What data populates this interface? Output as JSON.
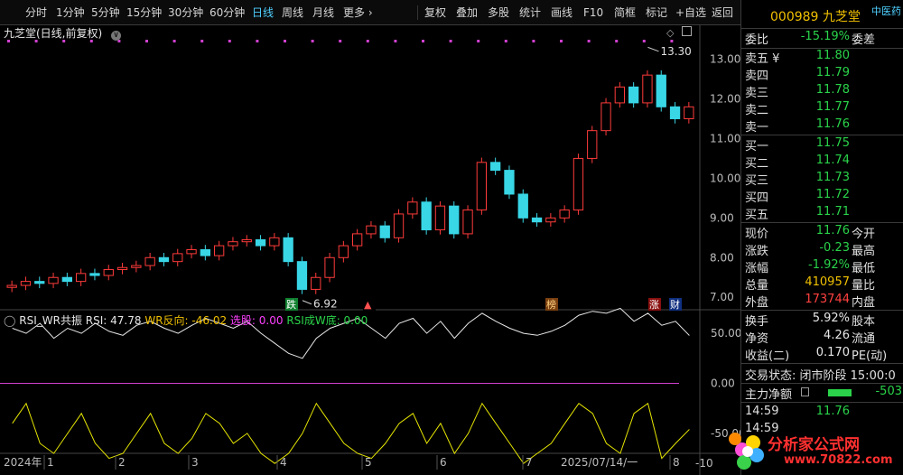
{
  "toolbar": {
    "items": [
      "分时",
      "1分钟",
      "5分钟",
      "15分钟",
      "30分钟",
      "60分钟",
      "日线",
      "周线",
      "月线",
      "更多 ›",
      "复权",
      "叠加",
      "多股",
      "统计",
      "画线",
      "F10",
      "简框",
      "标记",
      "+自选",
      "返回"
    ]
  },
  "chart": {
    "title": "九芝堂(日线,前复权)",
    "high_label": "13.30",
    "low_label": "6.92",
    "y_axis_price": [
      "13.00",
      "12.00",
      "11.00",
      "10.00",
      "9.00",
      "8.00",
      "7.00"
    ],
    "y_axis_ind": [
      "50.00",
      "0.00",
      "-50.00",
      "-10"
    ],
    "indicator": {
      "name": "RSI_WR共振",
      "rsi_label": "RSI: 47.78",
      "wr_label": "WR反向: -46.02",
      "pick_label": "选股: 0.00",
      "cross_label": "RSI成W底: 0.00"
    },
    "badges": {
      "fall": "跌",
      "rank": "榜",
      "rise": "涨",
      "fin": "财"
    },
    "x_axis": [
      "2024年",
      "1",
      "2",
      "3",
      "4",
      "5",
      "6",
      "7",
      "2025/07/14/一",
      "8"
    ]
  },
  "chart_data": {
    "type": "candlestick",
    "ylim": [
      6.8,
      13.4
    ],
    "x": [
      1,
      2,
      3,
      4,
      5,
      6,
      7,
      8,
      9,
      10,
      11,
      12,
      13,
      14,
      15,
      16,
      17,
      18,
      19,
      20,
      21,
      22,
      23,
      24,
      25,
      26,
      27,
      28,
      29,
      30,
      31,
      32,
      33,
      34,
      35,
      36,
      37,
      38,
      39,
      40,
      41,
      42,
      43,
      44,
      45,
      46,
      47,
      48,
      49,
      50
    ],
    "close": [
      7.3,
      7.4,
      7.35,
      7.5,
      7.4,
      7.6,
      7.55,
      7.7,
      7.75,
      7.8,
      8.0,
      7.9,
      8.1,
      8.2,
      8.05,
      8.3,
      8.4,
      8.45,
      8.3,
      8.5,
      7.9,
      7.2,
      7.5,
      8.0,
      8.3,
      8.6,
      8.8,
      8.5,
      9.1,
      9.4,
      8.7,
      9.3,
      8.6,
      9.2,
      10.4,
      10.2,
      9.6,
      9.0,
      8.9,
      9.0,
      9.2,
      10.5,
      11.2,
      11.9,
      12.3,
      11.9,
      12.6,
      11.8,
      11.5,
      11.8
    ],
    "series": [
      {
        "name": "RSI",
        "values": [
          55,
          50,
          60,
          45,
          55,
          50,
          60,
          52,
          48,
          58,
          62,
          55,
          50,
          58,
          65,
          60,
          55,
          62,
          50,
          40,
          30,
          25,
          45,
          55,
          60,
          65,
          55,
          45,
          60,
          65,
          50,
          62,
          45,
          60,
          70,
          62,
          55,
          50,
          48,
          52,
          58,
          68,
          72,
          70,
          75,
          62,
          70,
          58,
          62,
          47.78
        ]
      },
      {
        "name": "WR反向",
        "values": [
          -40,
          -20,
          -60,
          -70,
          -50,
          -30,
          -60,
          -75,
          -70,
          -50,
          -30,
          -60,
          -70,
          -55,
          -30,
          -40,
          -60,
          -50,
          -70,
          -80,
          -70,
          -50,
          -20,
          -40,
          -60,
          -70,
          -75,
          -60,
          -40,
          -30,
          -60,
          -40,
          -70,
          -50,
          -20,
          -40,
          -60,
          -80,
          -70,
          -60,
          -40,
          -20,
          -30,
          -60,
          -70,
          -30,
          -20,
          -75,
          -60,
          -46.02
        ]
      }
    ]
  },
  "panel": {
    "code_name": "000989 九芝堂",
    "tag": "中医药",
    "weibi_label": "委比",
    "weibi_val": "-15.19%",
    "weicha_label": "委差",
    "asks": [
      {
        "label": "卖五 ¥",
        "price": "11.80"
      },
      {
        "label": "卖四",
        "price": "11.79"
      },
      {
        "label": "卖三",
        "price": "11.78"
      },
      {
        "label": "卖二",
        "price": "11.77"
      },
      {
        "label": "卖一",
        "price": "11.76"
      }
    ],
    "bids": [
      {
        "label": "买一",
        "price": "11.75"
      },
      {
        "label": "买二",
        "price": "11.74"
      },
      {
        "label": "买三",
        "price": "11.73"
      },
      {
        "label": "买四",
        "price": "11.72"
      },
      {
        "label": "买五",
        "price": "11.71"
      }
    ],
    "quote": [
      {
        "label": "现价",
        "val": "11.76",
        "label2": "今开"
      },
      {
        "label": "涨跌",
        "val": "-0.23",
        "label2": "最高"
      },
      {
        "label": "涨幅",
        "val": "-1.92%",
        "label2": "最低"
      },
      {
        "label": "总量",
        "val": "410957",
        "label2": "量比"
      },
      {
        "label": "外盘",
        "val": "173744",
        "label2": "内盘"
      }
    ],
    "stats": [
      {
        "label": "换手",
        "val": "5.92%",
        "label2": "股本"
      },
      {
        "label": "净资",
        "val": "4.26",
        "label2": "流通"
      },
      {
        "label": "收益(二)",
        "val": "0.170",
        "label2": "PE(动)"
      }
    ],
    "trade_status": "交易状态: 闭市阶段 15:00:0",
    "main_flow_label": "主力净额",
    "main_flow_val": "-503",
    "tick_time": "14:59",
    "tick_price": "11.76",
    "tick_time2": "14:59"
  },
  "watermark": {
    "text": "分析家公式网",
    "url": "www.70822.com"
  }
}
